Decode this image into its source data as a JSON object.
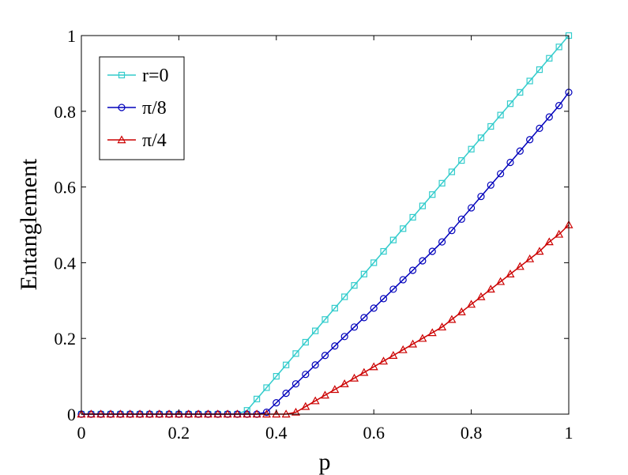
{
  "chart_data": {
    "type": "line",
    "title": "",
    "xlabel": "p",
    "ylabel": "Entanglement",
    "xlim": [
      0,
      1
    ],
    "ylim": [
      0,
      1
    ],
    "xticks": [
      "0",
      "0.2",
      "0.4",
      "0.6",
      "0.8",
      "1"
    ],
    "yticks": [
      "0",
      "0.2",
      "0.4",
      "0.6",
      "0.8",
      "1"
    ],
    "grid": false,
    "legend_position": "top-left",
    "series": [
      {
        "name": "r=0",
        "color": "#33CCCC",
        "marker": "square",
        "x": [
          0,
          0.02,
          0.04,
          0.06,
          0.08,
          0.1,
          0.12,
          0.14,
          0.16,
          0.18,
          0.2,
          0.22,
          0.24,
          0.26,
          0.28,
          0.3,
          0.32,
          0.34,
          0.36,
          0.38,
          0.4,
          0.42,
          0.44,
          0.46,
          0.48,
          0.5,
          0.52,
          0.54,
          0.56,
          0.58,
          0.6,
          0.62,
          0.64,
          0.66,
          0.68,
          0.7,
          0.72,
          0.74,
          0.76,
          0.78,
          0.8,
          0.82,
          0.84,
          0.86,
          0.88,
          0.9,
          0.92,
          0.94,
          0.96,
          0.98,
          1
        ],
        "y": [
          0,
          0,
          0,
          0,
          0,
          0,
          0,
          0,
          0,
          0,
          0,
          0,
          0,
          0,
          0,
          0,
          0,
          0.01,
          0.04,
          0.07,
          0.1,
          0.13,
          0.16,
          0.19,
          0.22,
          0.25,
          0.28,
          0.31,
          0.34,
          0.37,
          0.4,
          0.43,
          0.46,
          0.49,
          0.52,
          0.55,
          0.58,
          0.61,
          0.64,
          0.67,
          0.7,
          0.73,
          0.76,
          0.79,
          0.82,
          0.85,
          0.88,
          0.91,
          0.94,
          0.97,
          1.0
        ]
      },
      {
        "name": "π/8",
        "color": "#0000BB",
        "marker": "circle",
        "x": [
          0,
          0.02,
          0.04,
          0.06,
          0.08,
          0.1,
          0.12,
          0.14,
          0.16,
          0.18,
          0.2,
          0.22,
          0.24,
          0.26,
          0.28,
          0.3,
          0.32,
          0.34,
          0.36,
          0.38,
          0.4,
          0.42,
          0.44,
          0.46,
          0.48,
          0.5,
          0.52,
          0.54,
          0.56,
          0.58,
          0.6,
          0.62,
          0.64,
          0.66,
          0.68,
          0.7,
          0.72,
          0.74,
          0.76,
          0.78,
          0.8,
          0.82,
          0.84,
          0.86,
          0.88,
          0.9,
          0.92,
          0.94,
          0.96,
          0.98,
          1
        ],
        "y": [
          0,
          0,
          0,
          0,
          0,
          0,
          0,
          0,
          0,
          0,
          0,
          0,
          0,
          0,
          0,
          0,
          0,
          0,
          0,
          0.005,
          0.03,
          0.055,
          0.08,
          0.105,
          0.13,
          0.155,
          0.18,
          0.205,
          0.23,
          0.255,
          0.28,
          0.305,
          0.33,
          0.355,
          0.38,
          0.405,
          0.43,
          0.455,
          0.485,
          0.515,
          0.545,
          0.575,
          0.605,
          0.635,
          0.665,
          0.695,
          0.725,
          0.755,
          0.785,
          0.815,
          0.85
        ]
      },
      {
        "name": "π/4",
        "color": "#CC0000",
        "marker": "triangle",
        "x": [
          0,
          0.02,
          0.04,
          0.06,
          0.08,
          0.1,
          0.12,
          0.14,
          0.16,
          0.18,
          0.2,
          0.22,
          0.24,
          0.26,
          0.28,
          0.3,
          0.32,
          0.34,
          0.36,
          0.38,
          0.4,
          0.42,
          0.44,
          0.46,
          0.48,
          0.5,
          0.52,
          0.54,
          0.56,
          0.58,
          0.6,
          0.62,
          0.64,
          0.66,
          0.68,
          0.7,
          0.72,
          0.74,
          0.76,
          0.78,
          0.8,
          0.82,
          0.84,
          0.86,
          0.88,
          0.9,
          0.92,
          0.94,
          0.96,
          0.98,
          1
        ],
        "y": [
          0,
          0,
          0,
          0,
          0,
          0,
          0,
          0,
          0,
          0,
          0,
          0,
          0,
          0,
          0,
          0,
          0,
          0,
          0,
          0,
          0,
          0,
          0.005,
          0.02,
          0.035,
          0.05,
          0.065,
          0.08,
          0.095,
          0.11,
          0.125,
          0.14,
          0.155,
          0.17,
          0.185,
          0.2,
          0.215,
          0.23,
          0.25,
          0.27,
          0.29,
          0.31,
          0.33,
          0.35,
          0.37,
          0.39,
          0.41,
          0.43,
          0.455,
          0.475,
          0.5
        ]
      }
    ]
  }
}
